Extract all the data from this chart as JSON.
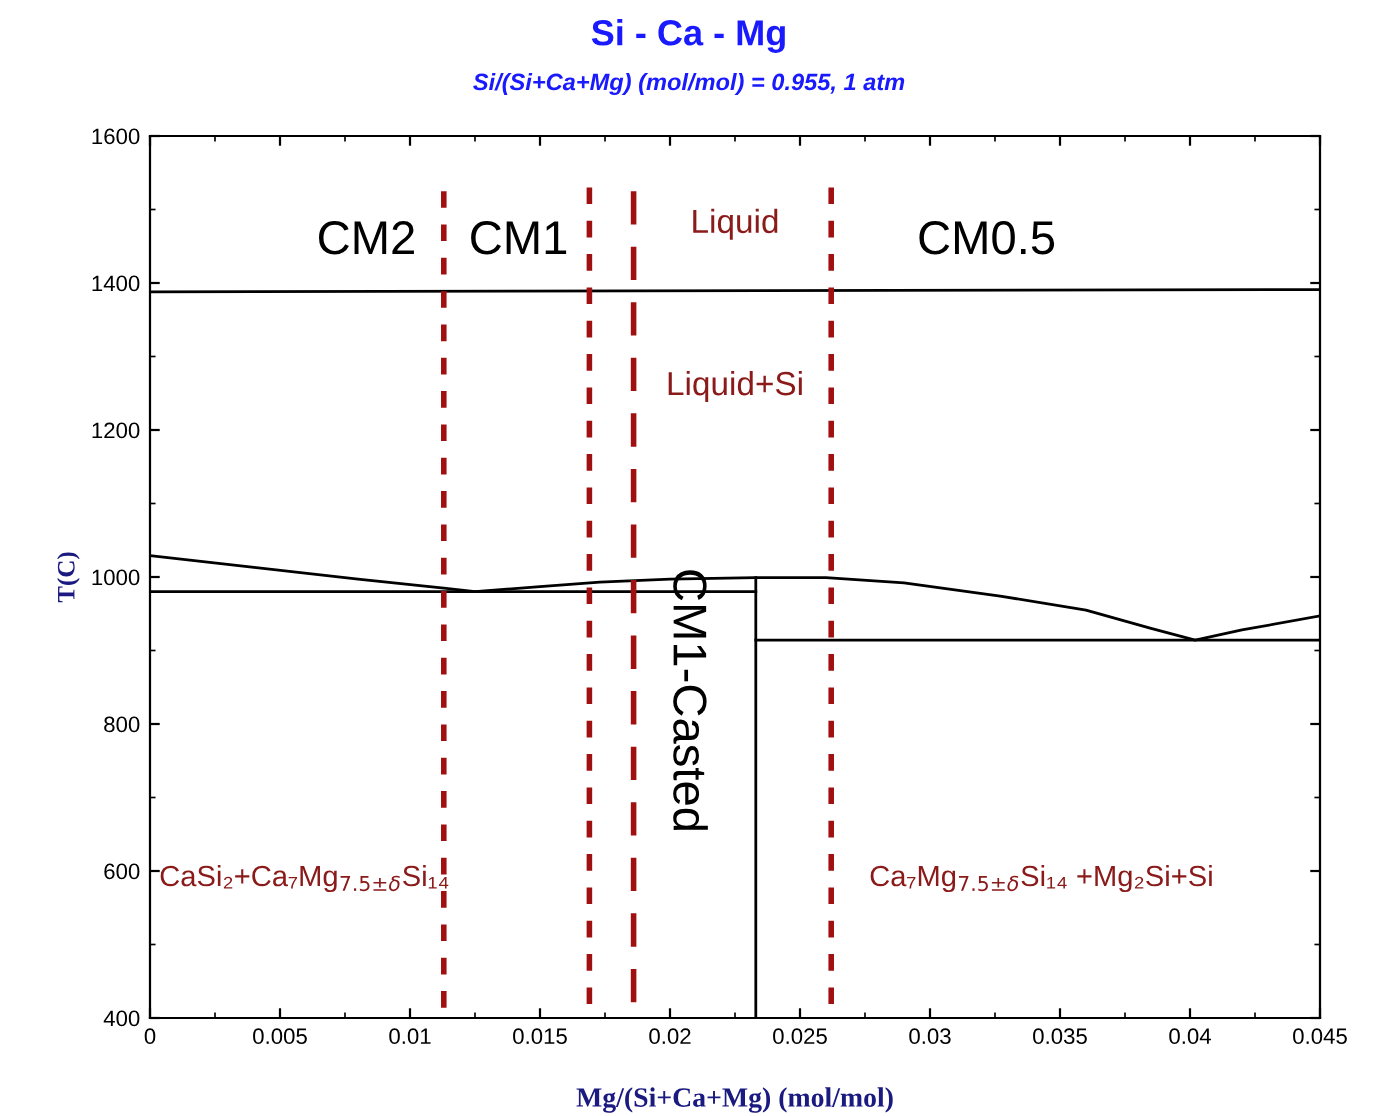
{
  "chart_data": {
    "type": "line",
    "title": "Si - Ca - Mg",
    "subtitle": "Si/(Si+Ca+Mg) (mol/mol) = 0.955, 1 atm",
    "xlabel": "Mg/(Si+Ca+Mg) (mol/mol)",
    "ylabel": "T(C)",
    "xlim": [
      0,
      0.045
    ],
    "xticks": [
      0,
      0.005,
      0.01,
      0.015,
      0.02,
      0.025,
      0.03,
      0.035,
      0.04,
      0.045
    ],
    "ylim": [
      400,
      1600
    ],
    "yticks": [
      400,
      600,
      800,
      1000,
      1200,
      1400,
      1600
    ],
    "grid": false,
    "legend": false,
    "marker": "none",
    "series": [
      {
        "color": "#000000",
        "line_style": "solid",
        "x": [
          0,
          0.045
        ],
        "values": [
          1388,
          1391
        ]
      },
      {
        "color": "#000000",
        "line_style": "solid",
        "x": [
          0,
          0.004,
          0.008,
          0.0113,
          0.0125,
          0.015,
          0.0173,
          0.02,
          0.0233,
          0.026,
          0.029,
          0.0327,
          0.036,
          0.0385,
          0.0402,
          0.042,
          0.045
        ],
        "values": [
          1029,
          1013,
          997,
          985,
          980,
          987,
          993,
          997,
          999,
          999,
          992,
          974,
          955,
          930,
          914,
          928,
          947
        ]
      },
      {
        "color": "#000000",
        "line_style": "solid",
        "x": [
          0,
          0.0233
        ],
        "values": [
          980,
          980
        ]
      },
      {
        "color": "#000000",
        "line_style": "solid",
        "x": [
          0.0233,
          0.0233
        ],
        "values": [
          400,
          999
        ]
      },
      {
        "color": "#000000",
        "line_style": "solid",
        "x": [
          0.0233,
          0.045
        ],
        "values": [
          914,
          914
        ]
      },
      {
        "color": "#a01010",
        "line_style": "dotted",
        "x": [
          0.0113,
          0.0113
        ],
        "values": [
          400,
          1525
        ]
      },
      {
        "color": "#a01010",
        "line_style": "dotted",
        "x": [
          0.0169,
          0.0169
        ],
        "values": [
          400,
          1530
        ]
      },
      {
        "color": "#a01010",
        "line_style": "dashed",
        "x": [
          0.0186,
          0.0186
        ],
        "values": [
          400,
          1525
        ]
      },
      {
        "color": "#a01010",
        "line_style": "dotted",
        "x": [
          0.0262,
          0.0262
        ],
        "values": [
          400,
          1530
        ]
      }
    ],
    "annotations": [
      "CM2",
      "CM1",
      "CM0.5",
      "CM1-Casted",
      "Liquid",
      "Liquid+Si",
      "CaSi₂+Ca₇Mg$_{7.5±δ}$Si₁₄",
      "Ca₇Mg$_{7.5±δ}$Si₁₄ +Mg₂Si+Si"
    ]
  }
}
